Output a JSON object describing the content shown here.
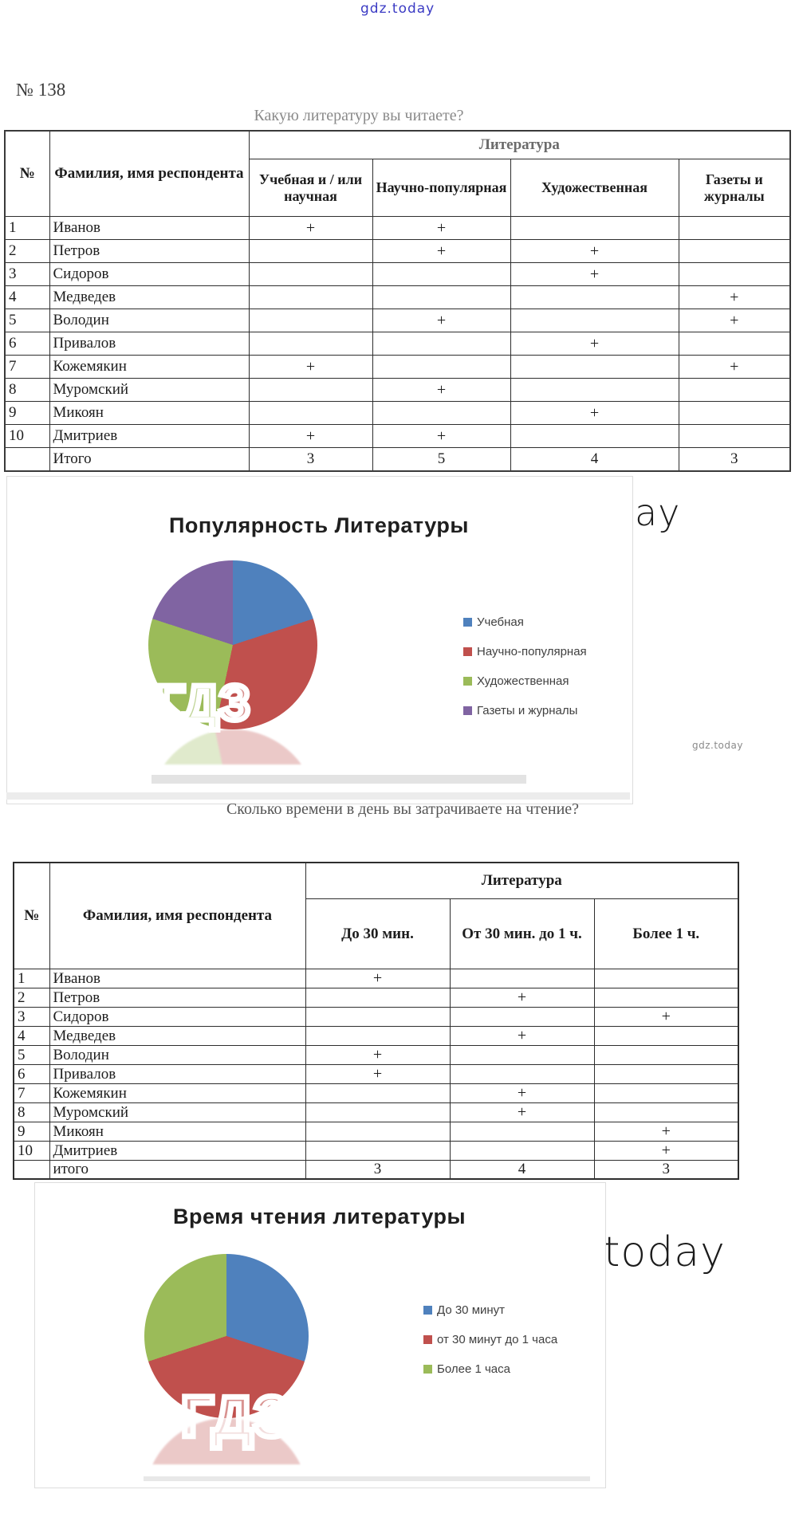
{
  "watermark": {
    "text": "gdz.today",
    "letters": "ГДЗ"
  },
  "doc_number": "№ 138",
  "question1": "Какую литературу вы читаете?",
  "question2": "Сколько времени в день вы затрачиваете на чтение?",
  "table1": {
    "col_num": "№",
    "col_name": "Фамилия, имя респондента",
    "group": "Литература",
    "columns": [
      "Учебная и / или научная",
      "Научно-популярная",
      "Художественная",
      "Газеты и журналы"
    ],
    "rows": [
      {
        "n": "1",
        "name": "Иванов",
        "marks": [
          "+",
          "+",
          "",
          ""
        ]
      },
      {
        "n": "2",
        "name": "Петров",
        "marks": [
          "",
          "+",
          "+",
          ""
        ]
      },
      {
        "n": "3",
        "name": "Сидоров",
        "marks": [
          "",
          "",
          "+",
          ""
        ]
      },
      {
        "n": "4",
        "name": "Медведев",
        "marks": [
          "",
          "",
          "",
          "+"
        ]
      },
      {
        "n": "5",
        "name": "Володин",
        "marks": [
          "",
          "+",
          "",
          "+"
        ]
      },
      {
        "n": "6",
        "name": "Привалов",
        "marks": [
          "",
          "",
          "+",
          ""
        ]
      },
      {
        "n": "7",
        "name": "Кожемякин",
        "marks": [
          "+",
          "",
          "",
          "+"
        ]
      },
      {
        "n": "8",
        "name": "Муромский",
        "marks": [
          "",
          "+",
          "",
          ""
        ]
      },
      {
        "n": "9",
        "name": "Микоян",
        "marks": [
          "",
          "",
          "+",
          ""
        ]
      },
      {
        "n": "10",
        "name": "Дмитриев",
        "marks": [
          "+",
          "+",
          "",
          ""
        ]
      }
    ],
    "total_label": "Итого",
    "totals": [
      "3",
      "5",
      "4",
      "3"
    ]
  },
  "table2": {
    "col_num": "№",
    "col_name": "Фамилия, имя респондента",
    "group": "Литература",
    "columns": [
      "До 30 мин.",
      "От 30 мин. до 1 ч.",
      "Более 1 ч."
    ],
    "rows": [
      {
        "n": "1",
        "name": "Иванов",
        "marks": [
          "+",
          "",
          ""
        ]
      },
      {
        "n": "2",
        "name": "Петров",
        "marks": [
          "",
          "+",
          ""
        ]
      },
      {
        "n": "3",
        "name": "Сидоров",
        "marks": [
          "",
          "",
          "+"
        ]
      },
      {
        "n": "4",
        "name": "Медведев",
        "marks": [
          "",
          "+",
          ""
        ]
      },
      {
        "n": "5",
        "name": "Володин",
        "marks": [
          "+",
          "",
          ""
        ]
      },
      {
        "n": "6",
        "name": "Привалов",
        "marks": [
          "+",
          "",
          ""
        ]
      },
      {
        "n": "7",
        "name": "Кожемякин",
        "marks": [
          "",
          "+",
          ""
        ]
      },
      {
        "n": "8",
        "name": "Муромский",
        "marks": [
          "",
          "+",
          ""
        ]
      },
      {
        "n": "9",
        "name": "Микоян",
        "marks": [
          "",
          "",
          "+"
        ]
      },
      {
        "n": "10",
        "name": "Дмитриев",
        "marks": [
          "",
          "",
          "+"
        ]
      }
    ],
    "total_label": "итого",
    "totals": [
      "3",
      "4",
      "3"
    ]
  },
  "chart_data": [
    {
      "type": "pie",
      "title": "Популярность Литературы",
      "labels": [
        "Учебная",
        "Научно-популярная",
        "Художественная",
        "Газеты и журналы"
      ],
      "values": [
        3,
        5,
        4,
        3
      ],
      "percent": [
        20,
        33.3,
        26.7,
        20
      ],
      "colors": [
        "#4F81BD",
        "#C0504D",
        "#9BBB59",
        "#8064A2"
      ],
      "start_angle_deg": 0,
      "direction": "clockwise",
      "legend_position": "right"
    },
    {
      "type": "pie",
      "title": "Время чтения литературы",
      "labels": [
        "До 30 минут",
        "от 30 минут до 1 часа",
        "Более 1 часа"
      ],
      "values": [
        3,
        4,
        3
      ],
      "percent": [
        30,
        40,
        30
      ],
      "colors": [
        "#4F81BD",
        "#C0504D",
        "#9BBB59"
      ],
      "start_angle_deg": 0,
      "direction": "clockwise",
      "legend_position": "right"
    }
  ]
}
